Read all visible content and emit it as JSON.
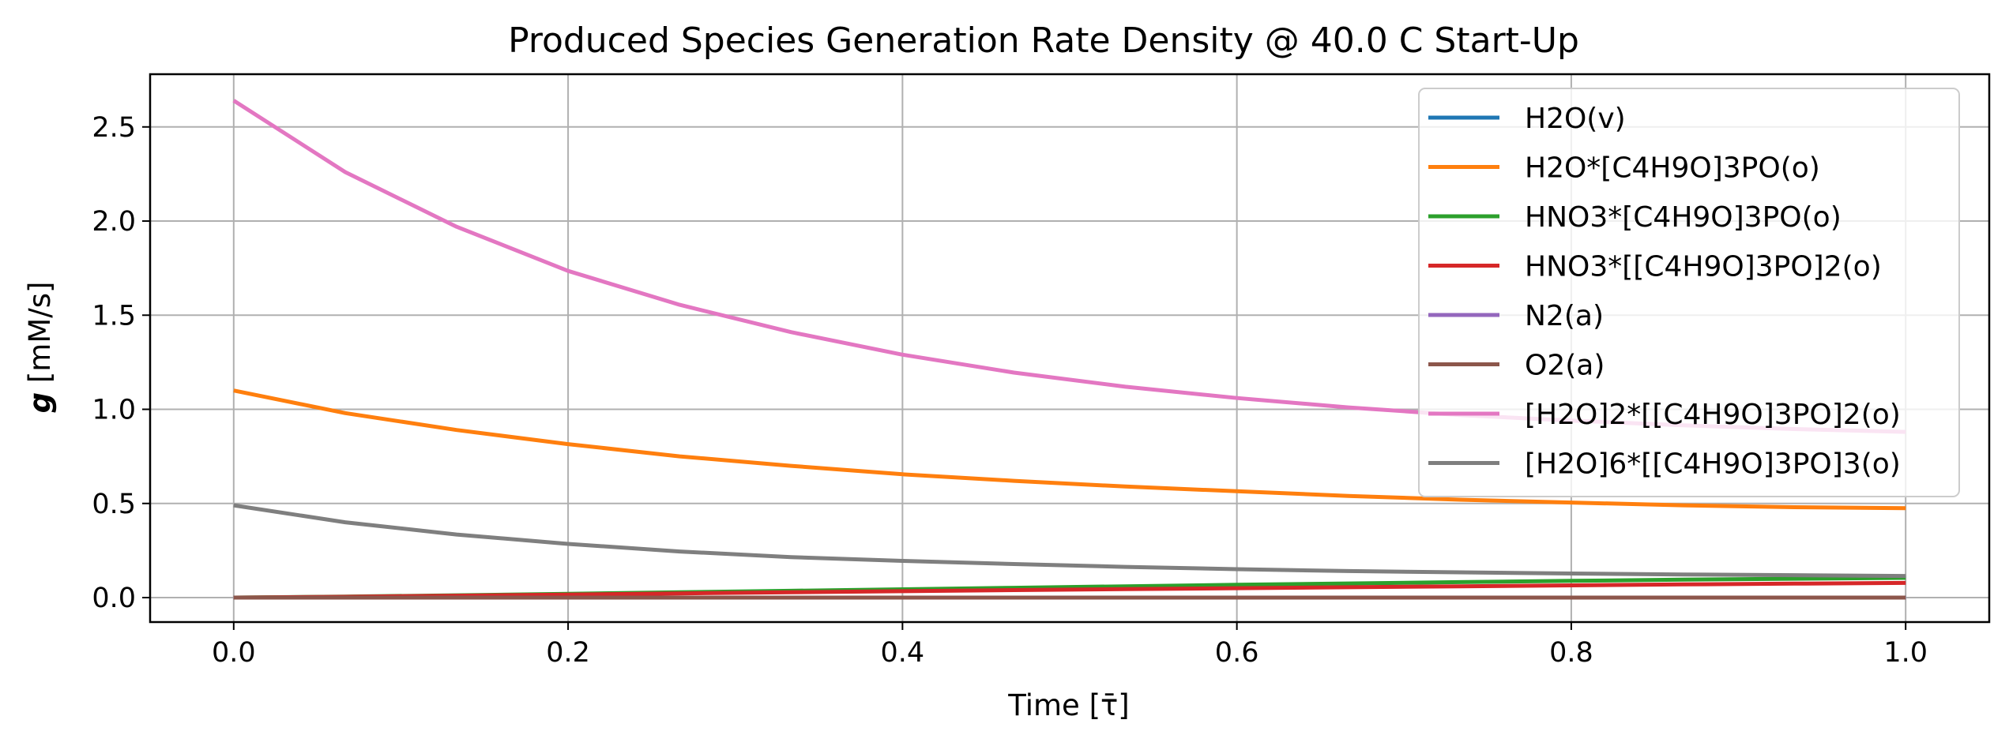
{
  "chart_data": {
    "type": "line",
    "title": "Produced Species Generation Rate Density @ 40.0 C Start-Up",
    "xlabel": "Time [τ̄]",
    "ylabel_symbol": "g",
    "ylabel_units": "[mM/s]",
    "xlim": [
      -0.05,
      1.05
    ],
    "ylim": [
      -0.13,
      2.78
    ],
    "xticks": [
      0.0,
      0.2,
      0.4,
      0.6,
      0.8,
      1.0
    ],
    "xtick_labels": [
      "0.0",
      "0.2",
      "0.4",
      "0.6",
      "0.8",
      "1.0"
    ],
    "yticks": [
      0.0,
      0.5,
      1.0,
      1.5,
      2.0,
      2.5
    ],
    "ytick_labels": [
      "0.0",
      "0.5",
      "1.0",
      "1.5",
      "2.0",
      "2.5"
    ],
    "grid": true,
    "legend_position": "upper right",
    "x": [
      0.0,
      0.0667,
      0.1333,
      0.2,
      0.2667,
      0.3333,
      0.4,
      0.4667,
      0.5333,
      0.6,
      0.6667,
      0.7333,
      0.8,
      0.8667,
      0.9333,
      1.0
    ],
    "series": [
      {
        "name": "H2O(v)",
        "color": "#1f77b4",
        "values": [
          0.0,
          0.0,
          0.0,
          0.0,
          0.0,
          0.0,
          0.0,
          0.0,
          0.0,
          0.0,
          0.0,
          0.0,
          0.0,
          0.0,
          0.0,
          0.0
        ]
      },
      {
        "name": "H2O*[C4H9O]3PO(o)",
        "color": "#ff7f0e",
        "values": [
          1.1,
          0.98,
          0.89,
          0.815,
          0.75,
          0.7,
          0.655,
          0.62,
          0.59,
          0.565,
          0.54,
          0.52,
          0.505,
          0.49,
          0.48,
          0.475
        ]
      },
      {
        "name": "HNO3*[C4H9O]3PO(o)",
        "color": "#2ca02c",
        "values": [
          0.0,
          0.005,
          0.012,
          0.02,
          0.028,
          0.036,
          0.044,
          0.052,
          0.06,
          0.068,
          0.075,
          0.082,
          0.089,
          0.095,
          0.1,
          0.105
        ]
      },
      {
        "name": "HNO3*[[C4H9O]3PO]2(o)",
        "color": "#d62728",
        "values": [
          0.0,
          0.004,
          0.01,
          0.016,
          0.022,
          0.028,
          0.034,
          0.04,
          0.045,
          0.05,
          0.055,
          0.06,
          0.065,
          0.07,
          0.074,
          0.078
        ]
      },
      {
        "name": "N2(a)",
        "color": "#9467bd",
        "values": [
          0.0,
          0.0,
          0.0,
          0.0,
          0.0,
          0.0,
          0.0,
          0.0,
          0.0,
          0.0,
          0.0,
          0.0,
          0.0,
          0.0,
          0.0,
          0.0
        ]
      },
      {
        "name": "O2(a)",
        "color": "#8c564b",
        "values": [
          0.0,
          0.0,
          0.0,
          0.0,
          0.0,
          0.0,
          0.0,
          0.0,
          0.0,
          0.0,
          0.0,
          0.0,
          0.0,
          0.0,
          0.0,
          0.0
        ]
      },
      {
        "name": "[H2O]2*[[C4H9O]3PO]2(o)",
        "color": "#e377c2",
        "values": [
          2.64,
          2.26,
          1.97,
          1.735,
          1.555,
          1.41,
          1.29,
          1.195,
          1.12,
          1.06,
          1.01,
          0.97,
          0.94,
          0.915,
          0.895,
          0.88
        ]
      },
      {
        "name": "[H2O]6*[[C4H9O]3PO]3(o)",
        "color": "#7f7f7f",
        "values": [
          0.49,
          0.4,
          0.335,
          0.285,
          0.245,
          0.215,
          0.195,
          0.178,
          0.163,
          0.151,
          0.141,
          0.134,
          0.128,
          0.123,
          0.119,
          0.115
        ]
      }
    ]
  }
}
